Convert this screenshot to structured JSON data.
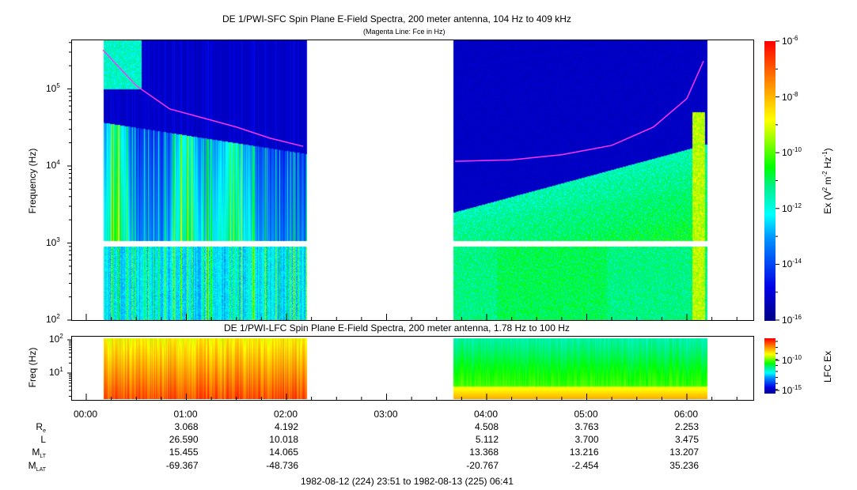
{
  "chart_data": {
    "type": "heatmap",
    "panels": [
      {
        "title": "DE 1/PWI-SFC  Spin Plane E-Field Spectra, 200 meter antenna, 104 Hz to 409 kHz",
        "subtitle": "(Magenta Line: Fce in Hz)",
        "ylabel": "Frequency (Hz)",
        "yscale": "log",
        "ylim": [
          100,
          409000
        ],
        "yticks": [
          {
            "base": "10",
            "exp": "2"
          },
          {
            "base": "10",
            "exp": "3"
          },
          {
            "base": "10",
            "exp": "4"
          },
          {
            "base": "10",
            "exp": "5"
          }
        ],
        "colorbar": {
          "label_main": "Ex (V",
          "label_parts": [
            "2",
            " m",
            "-2",
            " Hz",
            "-1",
            ")"
          ],
          "range_log10": [
            -16,
            -6
          ],
          "ticks": [
            {
              "base": "10",
              "exp": "-6"
            },
            {
              "base": "10",
              "exp": "-8"
            },
            {
              "base": "10",
              "exp": "-10"
            },
            {
              "base": "10",
              "exp": "-12"
            },
            {
              "base": "10",
              "exp": "-14"
            },
            {
              "base": "10",
              "exp": "-16"
            }
          ]
        },
        "data_segments_utc": [
          [
            "00:10",
            "02:12"
          ],
          [
            "03:40",
            "06:12"
          ]
        ],
        "fce_line_hz": [
          {
            "t": "00:10",
            "f": 320000
          },
          {
            "t": "00:30",
            "f": 110000
          },
          {
            "t": "00:50",
            "f": 55000
          },
          {
            "t": "01:10",
            "f": 42000
          },
          {
            "t": "01:30",
            "f": 32000
          },
          {
            "t": "01:50",
            "f": 23000
          },
          {
            "t": "02:10",
            "f": 18000
          },
          {
            "t": "03:41",
            "f": 11500
          },
          {
            "t": "04:15",
            "f": 12000
          },
          {
            "t": "04:45",
            "f": 14000
          },
          {
            "t": "05:15",
            "f": 18500
          },
          {
            "t": "05:40",
            "f": 32000
          },
          {
            "t": "06:00",
            "f": 75000
          },
          {
            "t": "06:10",
            "f": 230000
          }
        ]
      },
      {
        "title": "DE 1/PWI-LFC  Spin Plane E-Field Spectra, 200 meter antenna, 1.78 Hz to 100 Hz",
        "ylabel": "Freq (Hz)",
        "yscale": "log",
        "ylim": [
          1.78,
          100
        ],
        "yticks": [
          {
            "base": "10",
            "exp": "2"
          },
          {
            "base": "10",
            "exp": "1"
          }
        ],
        "colorbar": {
          "label": "LFC Ex",
          "ticks": [
            {
              "base": "10",
              "exp": "-10"
            },
            {
              "base": "10",
              "exp": "-15"
            }
          ]
        }
      }
    ],
    "xaxis": {
      "ticks": [
        "00:00",
        "01:00",
        "02:00",
        "03:00",
        "04:00",
        "05:00",
        "06:00"
      ],
      "minor_tick_minutes": 15
    },
    "colors": {
      "fce_line": "#ff33ff"
    }
  },
  "ephemeris": {
    "labels": [
      {
        "main": "R",
        "sub": "e"
      },
      {
        "main": "L",
        "sub": ""
      },
      {
        "main": "M",
        "sub": "LT"
      },
      {
        "main": "M",
        "sub": "LAT"
      }
    ],
    "columns": [
      {
        "time": "01:00",
        "values": [
          "3.068",
          "26.590",
          "15.455",
          "-69.367"
        ]
      },
      {
        "time": "02:00",
        "values": [
          "4.192",
          "10.018",
          "14.065",
          "-48.736"
        ]
      },
      {
        "time": "04:00",
        "values": [
          "4.508",
          "5.112",
          "13.368",
          "-20.767"
        ]
      },
      {
        "time": "05:00",
        "values": [
          "3.763",
          "3.700",
          "13.216",
          "-2.454"
        ]
      },
      {
        "time": "06:00",
        "values": [
          "2.253",
          "3.475",
          "13.207",
          "35.236"
        ]
      }
    ]
  },
  "footer": "1982-08-12 (224) 23:51 to 1982-08-13 (225) 06:41"
}
